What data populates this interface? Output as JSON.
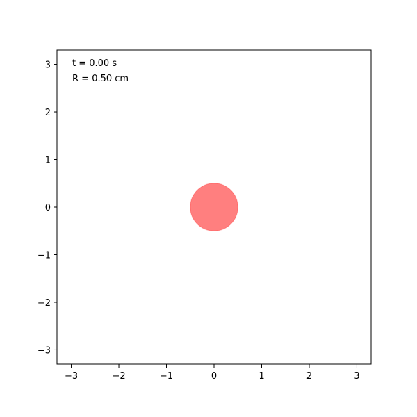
{
  "chart_data": {
    "type": "scatter",
    "xlim": [
      -3.3,
      3.3
    ],
    "ylim": [
      -3.3,
      3.3
    ],
    "x_ticks": [
      -3,
      -2,
      -1,
      0,
      1,
      2,
      3
    ],
    "y_ticks": [
      -3,
      -2,
      -1,
      0,
      1,
      2,
      3
    ],
    "x_tick_labels": [
      "−3",
      "−2",
      "−1",
      "0",
      "1",
      "2",
      "3"
    ],
    "y_tick_labels": [
      "−3",
      "−2",
      "−1",
      "0",
      "1",
      "2",
      "3"
    ],
    "grid": false,
    "annotations": {
      "time": "t = 0.00 s",
      "radius": "R = 0.50 cm"
    },
    "circle": {
      "center": [
        0,
        0
      ],
      "radius": 0.5,
      "color": "#ff0000",
      "alpha": 0.5
    }
  }
}
